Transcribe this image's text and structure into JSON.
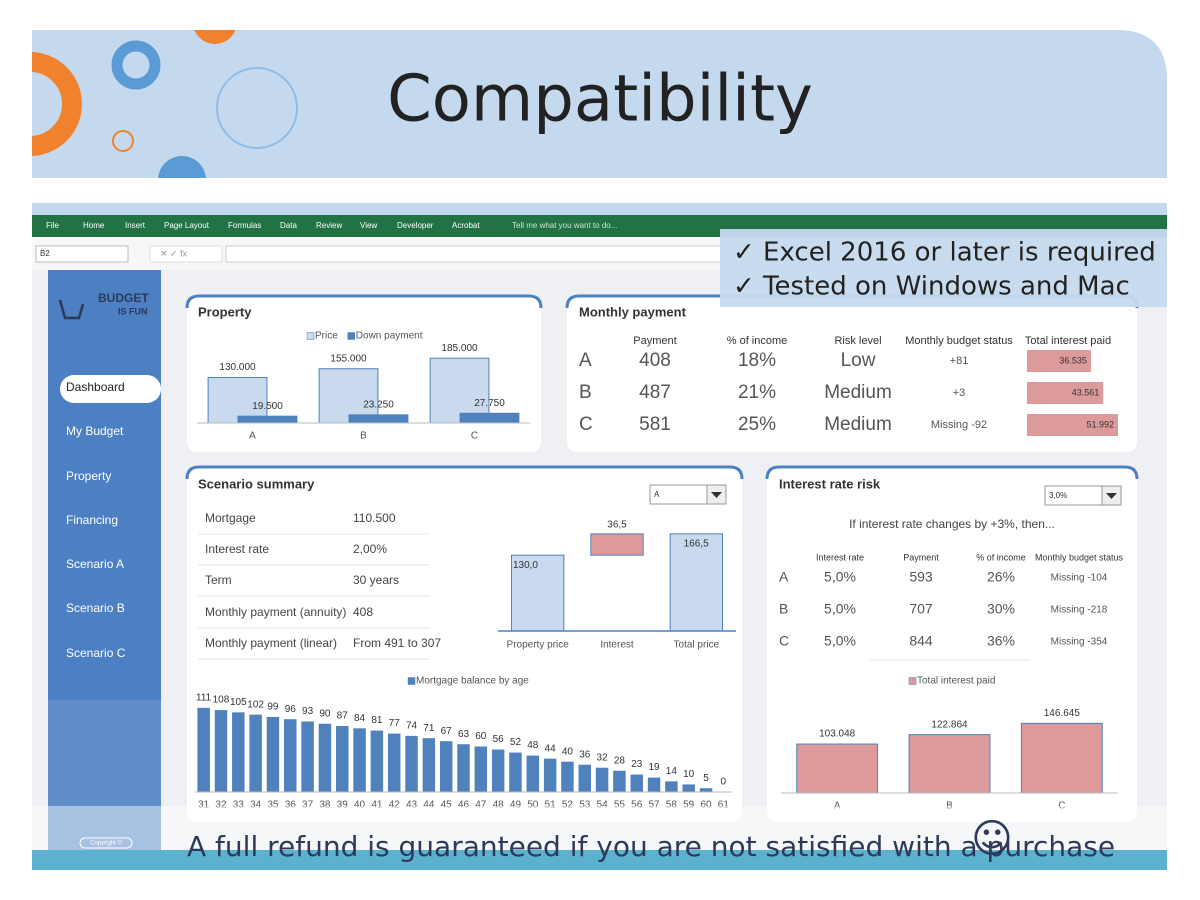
{
  "slide_title": "Compatibility",
  "notes": [
    "✓  Excel 2016 or later is required",
    "✓  Tested on Windows and Mac"
  ],
  "footer": "A full refund is guaranteed if you are not satisfied with a purchase",
  "smiley": "☺",
  "ribbon_tabs": [
    "File",
    "Home",
    "Insert",
    "Page Layout",
    "Formulas",
    "Data",
    "Review",
    "View",
    "Developer",
    "Acrobat"
  ],
  "tell_me": "Tell me what you want to do...",
  "name_box": "B2",
  "logo": {
    "line1": "BUDGET",
    "line2": "IS FUN"
  },
  "sidebar": [
    "Dashboard",
    "My Budget",
    "Property",
    "Financing",
    "Scenario A",
    "Scenario B",
    "Scenario C"
  ],
  "copyright": "Copyright ©",
  "property": {
    "title": "Property"
  },
  "monthly_payment": {
    "title": "Monthly payment",
    "columns": [
      "Payment",
      "% of income",
      "Risk level",
      "Monthly budget status",
      "Total interest paid"
    ],
    "rows": [
      [
        "A",
        "408",
        "18%",
        "Low",
        "+81"
      ],
      [
        "B",
        "487",
        "21%",
        "Medium",
        "+3"
      ],
      [
        "C",
        "581",
        "25%",
        "Medium",
        "Missing -92"
      ]
    ],
    "total_interest": {
      "values": [
        36535,
        43561,
        51992
      ],
      "value_labels": [
        "36.535",
        "43.561",
        "51.992"
      ],
      "xlim": [
        0,
        52000
      ],
      "color": "#dc9a9a"
    }
  },
  "scenario_summary": {
    "title": "Scenario summary",
    "selector": "A",
    "rows": [
      [
        "Mortgage",
        "110.500"
      ],
      [
        "Interest rate",
        "2,00%"
      ],
      [
        "Term",
        "30 years"
      ],
      [
        "Monthly payment (annuity)",
        "408"
      ],
      [
        "Monthly payment (linear)",
        "From 491 to 307"
      ]
    ]
  },
  "interest_rate_risk": {
    "title": "Interest rate risk",
    "selector": "3,0%",
    "caption": "If interest rate changes by +3%, then...",
    "columns": [
      "Interest rate",
      "Payment",
      "% of income",
      "Monthly budget status"
    ],
    "rows": [
      [
        "A",
        "5,0%",
        "593",
        "26%",
        "Missing -104"
      ],
      [
        "B",
        "5,0%",
        "707",
        "30%",
        "Missing -218"
      ],
      [
        "C",
        "5,0%",
        "844",
        "36%",
        "Missing -354"
      ]
    ]
  },
  "chart_data": [
    {
      "type": "bar",
      "categories": [
        "A",
        "B",
        "C"
      ],
      "ylim": [
        0,
        200000
      ],
      "series": [
        {
          "name": "Price",
          "color": "#c9d9ee",
          "values": [
            130000,
            155000,
            185000
          ],
          "value_labels": [
            "130.000",
            "155.000",
            "185.000"
          ]
        },
        {
          "name": "Down payment",
          "color": "#4f81bd",
          "values": [
            19500,
            23250,
            27750
          ],
          "value_labels": [
            "19.500",
            "23.250",
            "27.750"
          ]
        }
      ]
    },
    {
      "type": "waterfall",
      "categories": [
        "Property price",
        "Interest",
        "Total price"
      ],
      "ylim": [
        0,
        180
      ],
      "measures": [
        "absolute",
        "relative",
        "total"
      ],
      "values": [
        130,
        36.5,
        166.5
      ],
      "value_labels": [
        "130,0",
        "36,5",
        "166,5"
      ],
      "colors": [
        "#c9d9ee",
        "#dc9a9a",
        "#c9d9ee"
      ]
    },
    {
      "type": "bar",
      "categories": [
        31,
        32,
        33,
        34,
        35,
        36,
        37,
        38,
        39,
        40,
        41,
        42,
        43,
        44,
        45,
        46,
        47,
        48,
        49,
        50,
        51,
        52,
        53,
        54,
        55,
        56,
        57,
        58,
        59,
        60,
        61
      ],
      "ylim": [
        0,
        120
      ],
      "series": [
        {
          "name": "Mortgage balance by age",
          "color": "#4f81bd",
          "values": [
            111,
            108,
            105,
            102,
            99,
            96,
            93,
            90,
            87,
            84,
            81,
            77,
            74,
            71,
            67,
            63,
            60,
            56,
            52,
            48,
            44,
            40,
            36,
            32,
            28,
            23,
            19,
            14,
            10,
            5,
            0
          ]
        }
      ]
    },
    {
      "type": "bar",
      "categories": [
        "A",
        "B",
        "C"
      ],
      "ylim": [
        0,
        160000
      ],
      "series": [
        {
          "name": "Total interest paid",
          "color": "#dc9a9a",
          "values": [
            103048,
            122864,
            146645
          ],
          "value_labels": [
            "103.048",
            "122.864",
            "146.645"
          ]
        }
      ]
    }
  ]
}
